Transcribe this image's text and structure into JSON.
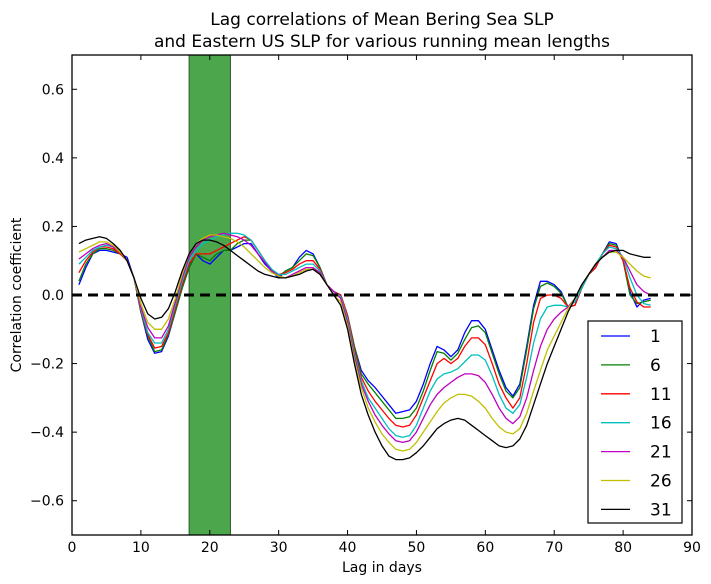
{
  "chart_data": {
    "type": "line",
    "title": [
      "Lag correlations of Mean Bering Sea SLP",
      "and Eastern US SLP for various running mean lengths"
    ],
    "xlabel": "Lag in days",
    "ylabel": "Correlation coefficient",
    "xlim": [
      0,
      90
    ],
    "ylim": [
      -0.7,
      0.7
    ],
    "xticks": [
      0,
      10,
      20,
      30,
      40,
      50,
      60,
      70,
      80,
      90
    ],
    "xtick_labels": [
      "0",
      "10",
      "20",
      "30",
      "40",
      "50",
      "60",
      "70",
      "80",
      "90"
    ],
    "yticks": [
      -0.6,
      -0.4,
      -0.2,
      0.0,
      0.2,
      0.4,
      0.6
    ],
    "ytick_labels": [
      "−0.6",
      "−0.4",
      "−0.2",
      "0.0",
      "0.2",
      "0.4",
      "0.6"
    ],
    "grid": false,
    "legend_position": "lower-right",
    "reference_line": {
      "y": 0.0,
      "style": "dashed",
      "color": "#000000"
    },
    "highlight_band": {
      "x_start": 17,
      "x_end": 23,
      "color": "#4ca64c"
    },
    "x": [
      1,
      2,
      3,
      4,
      5,
      6,
      7,
      8,
      9,
      10,
      11,
      12,
      13,
      14,
      15,
      16,
      17,
      18,
      19,
      20,
      21,
      22,
      23,
      24,
      25,
      26,
      27,
      28,
      29,
      30,
      31,
      32,
      33,
      34,
      35,
      36,
      37,
      38,
      39,
      40,
      41,
      42,
      43,
      44,
      45,
      46,
      47,
      48,
      49,
      50,
      51,
      52,
      53,
      54,
      55,
      56,
      57,
      58,
      59,
      60,
      61,
      62,
      63,
      64,
      65,
      66,
      67,
      68,
      69,
      70,
      71,
      72,
      73,
      74,
      75,
      76,
      77,
      78,
      79,
      80,
      81,
      82,
      83,
      84
    ],
    "series": [
      {
        "name": "1",
        "color": "#0000ff",
        "values": [
          0.03,
          0.08,
          0.12,
          0.13,
          0.13,
          0.125,
          0.12,
          0.11,
          0.05,
          -0.05,
          -0.13,
          -0.17,
          -0.165,
          -0.12,
          -0.05,
          0.02,
          0.08,
          0.12,
          0.1,
          0.09,
          0.11,
          0.13,
          0.13,
          0.14,
          0.15,
          0.15,
          0.12,
          0.09,
          0.07,
          0.05,
          0.07,
          0.08,
          0.11,
          0.13,
          0.12,
          0.08,
          0.03,
          0.01,
          0.0,
          -0.06,
          -0.15,
          -0.22,
          -0.25,
          -0.27,
          -0.295,
          -0.32,
          -0.345,
          -0.34,
          -0.335,
          -0.31,
          -0.26,
          -0.2,
          -0.15,
          -0.16,
          -0.18,
          -0.16,
          -0.11,
          -0.075,
          -0.075,
          -0.1,
          -0.16,
          -0.22,
          -0.27,
          -0.295,
          -0.26,
          -0.15,
          -0.03,
          0.04,
          0.04,
          0.03,
          0.01,
          -0.035,
          -0.03,
          0.02,
          0.06,
          0.08,
          0.12,
          0.155,
          0.15,
          0.1,
          0.01,
          -0.035,
          -0.015,
          -0.01
        ]
      },
      {
        "name": "6",
        "color": "#008000",
        "values": [
          0.04,
          0.09,
          0.12,
          0.135,
          0.135,
          0.13,
          0.12,
          0.1,
          0.05,
          -0.05,
          -0.12,
          -0.165,
          -0.16,
          -0.115,
          -0.05,
          0.02,
          0.08,
          0.12,
          0.11,
          0.1,
          0.12,
          0.13,
          0.13,
          0.15,
          0.16,
          0.16,
          0.13,
          0.1,
          0.07,
          0.055,
          0.07,
          0.08,
          0.1,
          0.12,
          0.115,
          0.08,
          0.03,
          0.01,
          0.0,
          -0.06,
          -0.15,
          -0.23,
          -0.26,
          -0.285,
          -0.31,
          -0.335,
          -0.36,
          -0.36,
          -0.355,
          -0.33,
          -0.28,
          -0.22,
          -0.165,
          -0.17,
          -0.19,
          -0.17,
          -0.13,
          -0.095,
          -0.09,
          -0.11,
          -0.17,
          -0.23,
          -0.28,
          -0.3,
          -0.27,
          -0.16,
          -0.04,
          0.025,
          0.035,
          0.025,
          0.005,
          -0.035,
          -0.03,
          0.02,
          0.06,
          0.08,
          0.12,
          0.15,
          0.145,
          0.1,
          0.0,
          -0.025,
          -0.02,
          -0.015
        ]
      },
      {
        "name": "11",
        "color": "#ff0000",
        "values": [
          0.065,
          0.1,
          0.125,
          0.14,
          0.14,
          0.135,
          0.12,
          0.1,
          0.05,
          -0.045,
          -0.115,
          -0.155,
          -0.15,
          -0.11,
          -0.04,
          0.03,
          0.09,
          0.12,
          0.12,
          0.12,
          0.13,
          0.14,
          0.15,
          0.16,
          0.17,
          0.16,
          0.13,
          0.1,
          0.07,
          0.06,
          0.065,
          0.075,
          0.09,
          0.1,
          0.1,
          0.075,
          0.03,
          0.01,
          0.0,
          -0.06,
          -0.16,
          -0.24,
          -0.28,
          -0.31,
          -0.335,
          -0.36,
          -0.38,
          -0.385,
          -0.38,
          -0.35,
          -0.3,
          -0.25,
          -0.2,
          -0.185,
          -0.2,
          -0.185,
          -0.15,
          -0.125,
          -0.125,
          -0.145,
          -0.2,
          -0.26,
          -0.3,
          -0.33,
          -0.3,
          -0.2,
          -0.08,
          -0.01,
          0.0,
          0.0,
          -0.01,
          -0.035,
          -0.03,
          0.02,
          0.06,
          0.08,
          0.12,
          0.145,
          0.14,
          0.1,
          0.02,
          -0.02,
          -0.035,
          -0.035
        ]
      },
      {
        "name": "16",
        "color": "#00bfbf",
        "values": [
          0.09,
          0.11,
          0.13,
          0.14,
          0.145,
          0.14,
          0.125,
          0.1,
          0.05,
          -0.04,
          -0.11,
          -0.14,
          -0.14,
          -0.1,
          -0.03,
          0.04,
          0.1,
          0.13,
          0.15,
          0.16,
          0.17,
          0.175,
          0.18,
          0.18,
          0.175,
          0.16,
          0.13,
          0.1,
          0.075,
          0.06,
          0.06,
          0.07,
          0.08,
          0.09,
          0.09,
          0.07,
          0.03,
          0.01,
          -0.005,
          -0.07,
          -0.17,
          -0.25,
          -0.3,
          -0.33,
          -0.36,
          -0.39,
          -0.41,
          -0.415,
          -0.41,
          -0.38,
          -0.33,
          -0.28,
          -0.245,
          -0.23,
          -0.225,
          -0.215,
          -0.195,
          -0.175,
          -0.175,
          -0.19,
          -0.235,
          -0.29,
          -0.33,
          -0.345,
          -0.32,
          -0.24,
          -0.14,
          -0.07,
          -0.035,
          -0.03,
          -0.03,
          -0.035,
          -0.02,
          0.02,
          0.06,
          0.09,
          0.12,
          0.14,
          0.135,
          0.11,
          0.05,
          0.0,
          -0.025,
          -0.03
        ]
      },
      {
        "name": "21",
        "color": "#bf00bf",
        "values": [
          0.105,
          0.12,
          0.135,
          0.145,
          0.15,
          0.14,
          0.125,
          0.1,
          0.05,
          -0.035,
          -0.095,
          -0.125,
          -0.125,
          -0.09,
          -0.02,
          0.05,
          0.11,
          0.14,
          0.16,
          0.17,
          0.175,
          0.18,
          0.175,
          0.17,
          0.16,
          0.145,
          0.12,
          0.095,
          0.07,
          0.055,
          0.05,
          0.06,
          0.07,
          0.08,
          0.08,
          0.065,
          0.03,
          0.01,
          -0.01,
          -0.08,
          -0.18,
          -0.26,
          -0.31,
          -0.35,
          -0.38,
          -0.405,
          -0.425,
          -0.43,
          -0.425,
          -0.4,
          -0.36,
          -0.32,
          -0.29,
          -0.27,
          -0.255,
          -0.24,
          -0.23,
          -0.23,
          -0.235,
          -0.255,
          -0.29,
          -0.33,
          -0.36,
          -0.375,
          -0.355,
          -0.3,
          -0.22,
          -0.15,
          -0.1,
          -0.07,
          -0.05,
          -0.035,
          -0.01,
          0.03,
          0.06,
          0.09,
          0.11,
          0.13,
          0.13,
          0.11,
          0.07,
          0.03,
          0.01,
          0.0
        ]
      },
      {
        "name": "26",
        "color": "#bfbf00",
        "values": [
          0.125,
          0.135,
          0.145,
          0.155,
          0.155,
          0.145,
          0.125,
          0.1,
          0.05,
          -0.025,
          -0.08,
          -0.1,
          -0.1,
          -0.07,
          -0.01,
          0.06,
          0.12,
          0.15,
          0.165,
          0.175,
          0.175,
          0.17,
          0.165,
          0.155,
          0.14,
          0.12,
          0.1,
          0.08,
          0.065,
          0.055,
          0.05,
          0.055,
          0.065,
          0.075,
          0.075,
          0.06,
          0.03,
          0.0,
          -0.02,
          -0.09,
          -0.19,
          -0.27,
          -0.33,
          -0.37,
          -0.405,
          -0.43,
          -0.45,
          -0.455,
          -0.45,
          -0.43,
          -0.4,
          -0.37,
          -0.34,
          -0.315,
          -0.3,
          -0.29,
          -0.29,
          -0.295,
          -0.31,
          -0.33,
          -0.36,
          -0.385,
          -0.4,
          -0.405,
          -0.39,
          -0.345,
          -0.28,
          -0.22,
          -0.16,
          -0.12,
          -0.08,
          -0.04,
          -0.01,
          0.03,
          0.06,
          0.09,
          0.11,
          0.125,
          0.125,
          0.11,
          0.09,
          0.07,
          0.055,
          0.05
        ]
      },
      {
        "name": "31",
        "color": "#000000",
        "values": [
          0.15,
          0.16,
          0.165,
          0.17,
          0.165,
          0.15,
          0.13,
          0.1,
          0.05,
          -0.01,
          -0.055,
          -0.07,
          -0.065,
          -0.04,
          0.01,
          0.07,
          0.12,
          0.15,
          0.16,
          0.16,
          0.155,
          0.145,
          0.13,
          0.115,
          0.1,
          0.085,
          0.07,
          0.06,
          0.055,
          0.05,
          0.05,
          0.055,
          0.06,
          0.07,
          0.075,
          0.06,
          0.03,
          0.0,
          -0.03,
          -0.1,
          -0.2,
          -0.29,
          -0.35,
          -0.4,
          -0.44,
          -0.47,
          -0.48,
          -0.48,
          -0.475,
          -0.46,
          -0.44,
          -0.415,
          -0.39,
          -0.375,
          -0.365,
          -0.36,
          -0.365,
          -0.38,
          -0.395,
          -0.41,
          -0.425,
          -0.44,
          -0.445,
          -0.44,
          -0.42,
          -0.38,
          -0.32,
          -0.26,
          -0.2,
          -0.15,
          -0.1,
          -0.05,
          -0.01,
          0.03,
          0.06,
          0.09,
          0.11,
          0.125,
          0.13,
          0.13,
          0.12,
          0.115,
          0.11,
          0.11
        ]
      }
    ]
  }
}
